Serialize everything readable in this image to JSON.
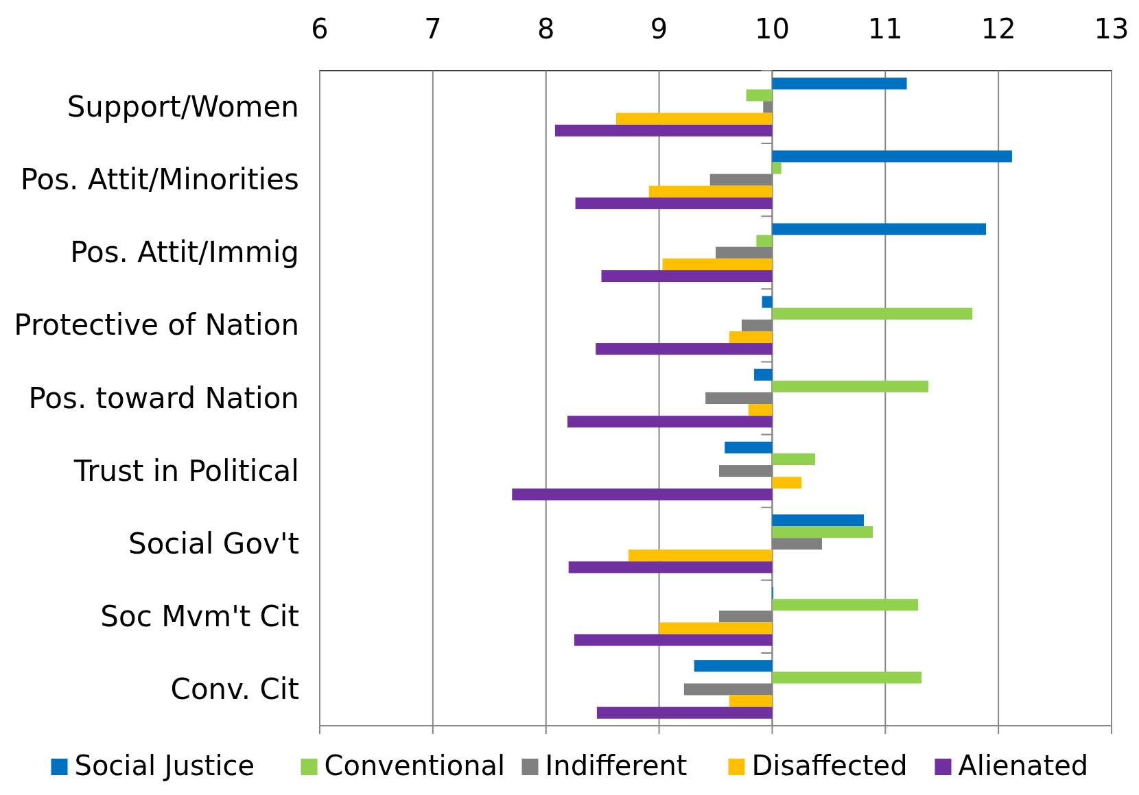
{
  "chart_data": {
    "type": "bar",
    "orientation": "horizontal",
    "categories": [
      "Support/Women",
      "Pos. Attit/Minorities",
      "Pos. Attit/Immig",
      "Protective of Nation",
      "Pos. toward Nation",
      "Trust in Political",
      "Social Gov't",
      "Soc Mvm't Cit",
      "Conv. Cit"
    ],
    "xlim": [
      6,
      13
    ],
    "xticks": [
      6,
      7,
      8,
      9,
      10,
      11,
      12,
      13
    ],
    "grid": "x",
    "legend": "bottom",
    "series": [
      {
        "name": "Social Justice",
        "color": "#0070c0",
        "base": [
          10,
          10,
          10,
          10,
          10,
          10,
          10,
          10,
          10
        ],
        "values": [
          1.19,
          2.12,
          1.89,
          -0.09,
          -0.16,
          -0.42,
          0.81,
          0.01,
          -0.69
        ]
      },
      {
        "name": "Conventional",
        "color": "#92d050",
        "base": [
          10,
          10,
          10,
          10,
          10,
          10,
          10,
          10,
          10
        ],
        "values": [
          -0.23,
          0.08,
          -0.14,
          1.77,
          1.38,
          0.38,
          0.89,
          1.29,
          1.32
        ]
      },
      {
        "name": "Indifferent",
        "color": "#808080",
        "base": [
          10,
          10,
          10,
          10,
          10,
          10,
          10,
          10,
          10
        ],
        "values": [
          -0.08,
          -0.55,
          -0.5,
          -0.27,
          -0.59,
          -0.47,
          0.44,
          -0.47,
          -0.78
        ]
      },
      {
        "name": "Disaffected",
        "color": "#ffc000",
        "base": [
          10,
          10,
          10,
          10,
          10,
          10,
          10,
          10,
          10
        ],
        "values": [
          -1.38,
          -1.09,
          -0.97,
          -0.38,
          -0.21,
          0.26,
          -1.27,
          -1.0,
          -0.38
        ]
      },
      {
        "name": "Alienated",
        "color": "#7030a0",
        "base": [
          10,
          10,
          10,
          10,
          10,
          10,
          10,
          10,
          10
        ],
        "values": [
          -1.92,
          -1.74,
          -1.51,
          -1.56,
          -1.81,
          -2.3,
          -1.8,
          -1.75,
          -1.55
        ]
      }
    ]
  }
}
